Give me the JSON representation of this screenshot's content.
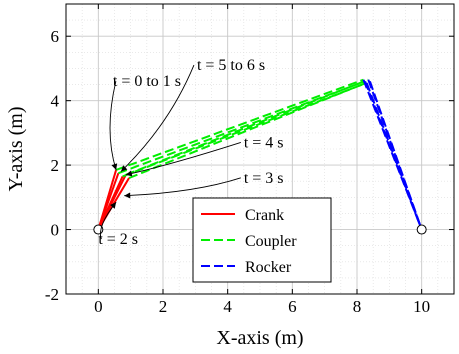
{
  "chart_data": {
    "type": "line",
    "xlabel": "X-axis (m)",
    "ylabel": "Y-axis (m)",
    "xlim": [
      -1,
      11
    ],
    "ylim": [
      -2,
      7
    ],
    "xticks": [
      0,
      2,
      4,
      6,
      8,
      10
    ],
    "yticks": [
      -2,
      0,
      2,
      4,
      6
    ],
    "xtick_labels": [
      "0",
      "2",
      "4",
      "6",
      "8",
      "10"
    ],
    "ytick_labels": [
      "-2",
      "0",
      "2",
      "4",
      "6"
    ],
    "grid": "minor dotted",
    "legend_position": "bottom-center",
    "pivots": [
      {
        "x": 0,
        "y": 0
      },
      {
        "x": 10,
        "y": 0
      }
    ],
    "series": [
      {
        "name": "Crank",
        "color": "#ff0000",
        "style": "solid",
        "segments": [
          [
            [
              0,
              0
            ],
            [
              0.55,
              1.85
            ]
          ],
          [
            [
              0,
              0
            ],
            [
              0.62,
              1.75
            ]
          ],
          [
            [
              0,
              0
            ],
            [
              0.75,
              1.65
            ]
          ],
          [
            [
              0,
              0
            ],
            [
              0.95,
              1.6
            ]
          ],
          [
            [
              0,
              0
            ],
            [
              0.85,
              1.7
            ]
          ]
        ]
      },
      {
        "name": "Coupler",
        "color": "#00ee00",
        "style": "dashed",
        "segments": [
          [
            [
              0.55,
              1.85
            ],
            [
              8.2,
              4.65
            ]
          ],
          [
            [
              0.62,
              1.75
            ],
            [
              8.25,
              4.6
            ]
          ],
          [
            [
              0.75,
              1.65
            ],
            [
              8.3,
              4.55
            ]
          ],
          [
            [
              0.95,
              1.6
            ],
            [
              8.4,
              4.6
            ]
          ],
          [
            [
              0.85,
              1.7
            ],
            [
              8.35,
              4.65
            ]
          ]
        ]
      },
      {
        "name": "Rocker",
        "color": "#0000ff",
        "style": "dashed",
        "segments": [
          [
            [
              8.2,
              4.65
            ],
            [
              10,
              0
            ]
          ],
          [
            [
              8.25,
              4.6
            ],
            [
              10,
              0
            ]
          ],
          [
            [
              8.3,
              4.55
            ],
            [
              10,
              0
            ]
          ],
          [
            [
              8.4,
              4.6
            ],
            [
              10,
              0
            ]
          ],
          [
            [
              8.35,
              4.65
            ],
            [
              10,
              0
            ]
          ]
        ]
      }
    ],
    "annotations": [
      {
        "label": "t = 0 to 1 s",
        "text_at": [
          0.45,
          4.45
        ],
        "target": [
          0.55,
          1.85
        ]
      },
      {
        "label": "t = 5 to 6 s",
        "text_at": [
          3.05,
          4.95
        ],
        "target": [
          0.7,
          1.8
        ]
      },
      {
        "label": "t = 4 s",
        "text_at": [
          4.5,
          2.55
        ],
        "target": [
          0.85,
          1.7
        ]
      },
      {
        "label": "t = 3 s",
        "text_at": [
          4.5,
          1.45
        ],
        "target": [
          0.8,
          1.05
        ]
      },
      {
        "label": "t = 2 s",
        "text_at": [
          0.0,
          -0.45
        ],
        "target": [
          0.55,
          0.85
        ]
      }
    ]
  }
}
